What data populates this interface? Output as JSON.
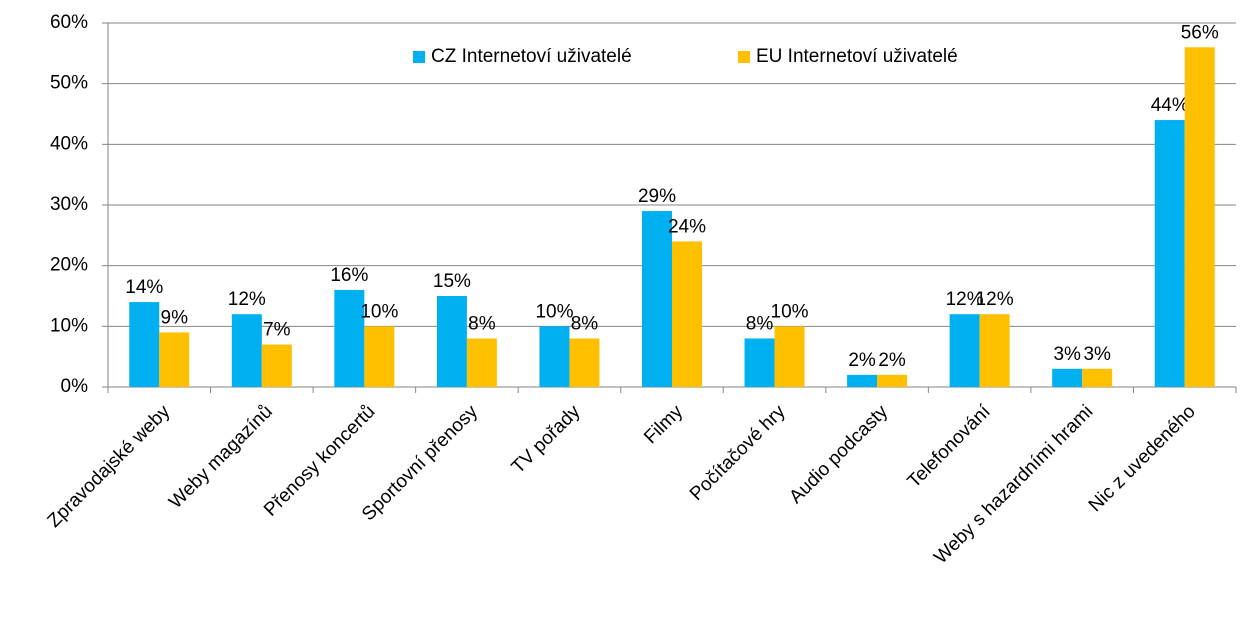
{
  "chart_data": {
    "type": "bar",
    "categories": [
      "Zpravodajské weby",
      "Weby magazínů",
      "Přenosy koncertů",
      "Sportovní přenosy",
      "TV pořady",
      "Filmy",
      "Počítačové hry",
      "Audio podcasty",
      "Telefonování",
      "Weby s hazardními hrami",
      "Nic z uvedeného"
    ],
    "series": [
      {
        "name": "CZ Internetoví uživatelé",
        "color": "#00b0f0",
        "values": [
          14,
          12,
          16,
          15,
          10,
          29,
          8,
          2,
          12,
          3,
          44
        ],
        "value_labels": [
          "14%",
          "12%",
          "16%",
          "15%",
          "10%",
          "29%",
          "8%",
          "2%",
          "12%",
          "3%",
          "44%"
        ]
      },
      {
        "name": "EU Internetoví uživatelé",
        "color": "#ffc000",
        "values": [
          9,
          7,
          10,
          8,
          8,
          24,
          10,
          2,
          12,
          3,
          56
        ],
        "value_labels": [
          "9%",
          "7%",
          "10%",
          "8%",
          "8%",
          "24%",
          "10%",
          "2%",
          "12%",
          "3%",
          "56%"
        ]
      }
    ],
    "ylim": [
      0,
      60
    ],
    "yticks": [
      {
        "value": 0,
        "label": "0%"
      },
      {
        "value": 10,
        "label": "10%"
      },
      {
        "value": 20,
        "label": "20%"
      },
      {
        "value": 30,
        "label": "30%"
      },
      {
        "value": 40,
        "label": "40%"
      },
      {
        "value": 50,
        "label": "50%"
      },
      {
        "value": 60,
        "label": "60%"
      }
    ],
    "grid": true,
    "legend": "top"
  }
}
